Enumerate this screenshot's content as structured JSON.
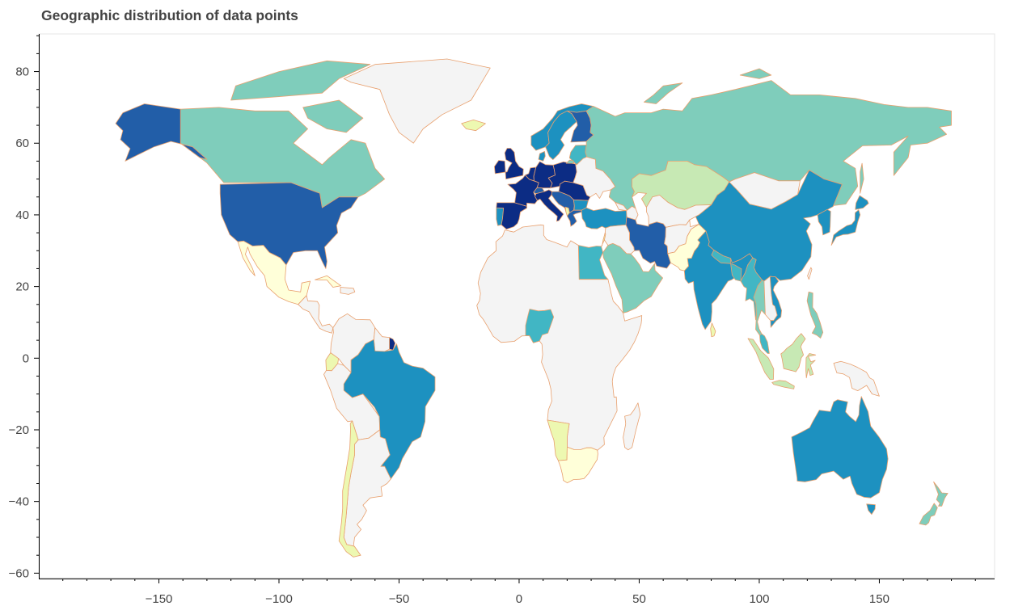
{
  "title": "Geographic distribution of data points",
  "chart_data": {
    "type": "choropleth",
    "title": "Geographic distribution of data points",
    "x_ticks": [
      -150,
      -100,
      -50,
      0,
      50,
      100,
      150
    ],
    "y_ticks": [
      80,
      60,
      40,
      20,
      0,
      -20,
      -40,
      -60
    ],
    "x_tick_labels": [
      "−150",
      "−100",
      "−50",
      "0",
      "50",
      "100",
      "150"
    ],
    "y_tick_labels": [
      "80",
      "60",
      "40",
      "20",
      "0",
      "−20",
      "−40",
      "−60"
    ],
    "xlim": [
      -200,
      198
    ],
    "ylim": [
      -61.5,
      90.5
    ],
    "no_data_color": "#f4f4f4",
    "border_color": "#e8a06e",
    "colors": {
      "darkest": "#0c2c84",
      "dark": "#225ea8",
      "mid": "#1d91c0",
      "mid_light": "#41b6c4",
      "teal": "#7fcdbb",
      "light_green": "#c7e9b4",
      "pale_yellow": "#edf8b1",
      "lightest": "#ffffd9"
    }
  }
}
